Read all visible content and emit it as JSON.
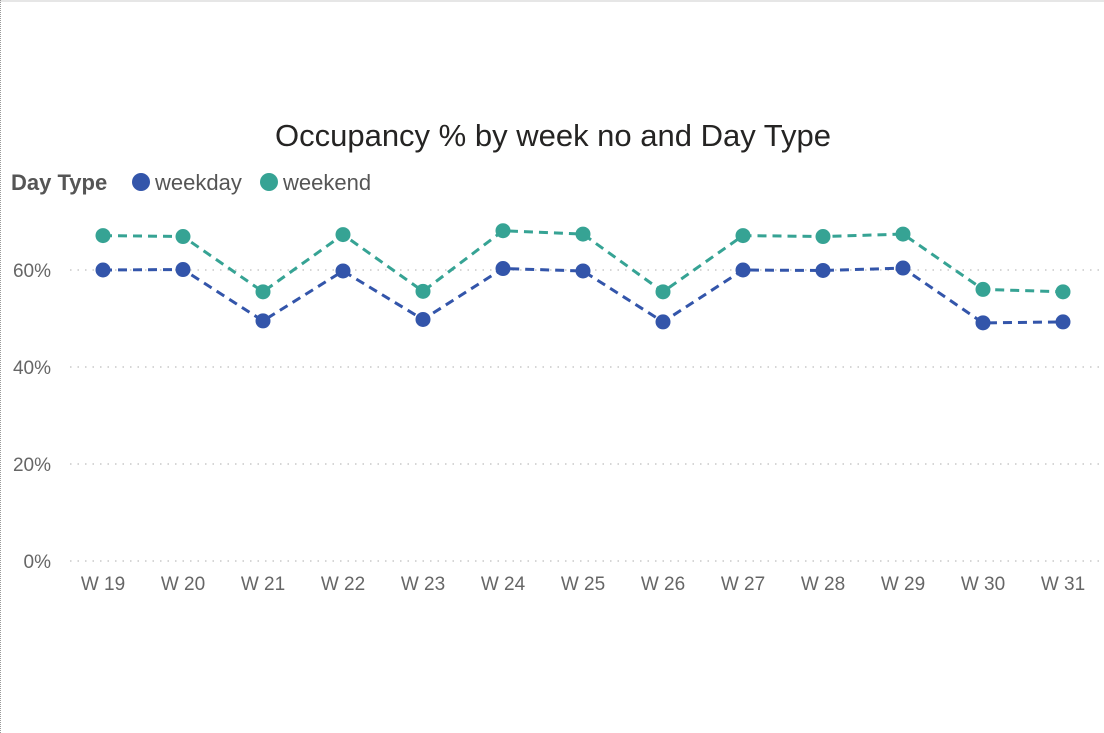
{
  "chart_data": {
    "type": "line",
    "title": "Occupancy % by week no and Day Type",
    "legend": {
      "title": "Day Type",
      "position": "top-left"
    },
    "categories": [
      "W 19",
      "W 20",
      "W 21",
      "W 22",
      "W 23",
      "W 24",
      "W 25",
      "W 26",
      "W 27",
      "W 28",
      "W 29",
      "W 30",
      "W 31"
    ],
    "series": [
      {
        "name": "weekday",
        "color": "#3355aa",
        "values": [
          60.0,
          60.1,
          49.5,
          59.8,
          49.8,
          60.3,
          59.8,
          49.3,
          60.0,
          59.9,
          60.4,
          49.1,
          49.3
        ]
      },
      {
        "name": "weekend",
        "color": "#36a394",
        "values": [
          67.1,
          66.9,
          55.5,
          67.3,
          55.6,
          68.1,
          67.4,
          55.5,
          67.1,
          66.9,
          67.4,
          56.0,
          55.5
        ]
      }
    ],
    "y_ticks": [
      0,
      20,
      40,
      60
    ],
    "y_tick_labels": [
      "0%",
      "20%",
      "40%",
      "60%"
    ],
    "ylim": [
      0,
      75
    ],
    "grid": true,
    "line_style": "dashed",
    "markers": true
  }
}
